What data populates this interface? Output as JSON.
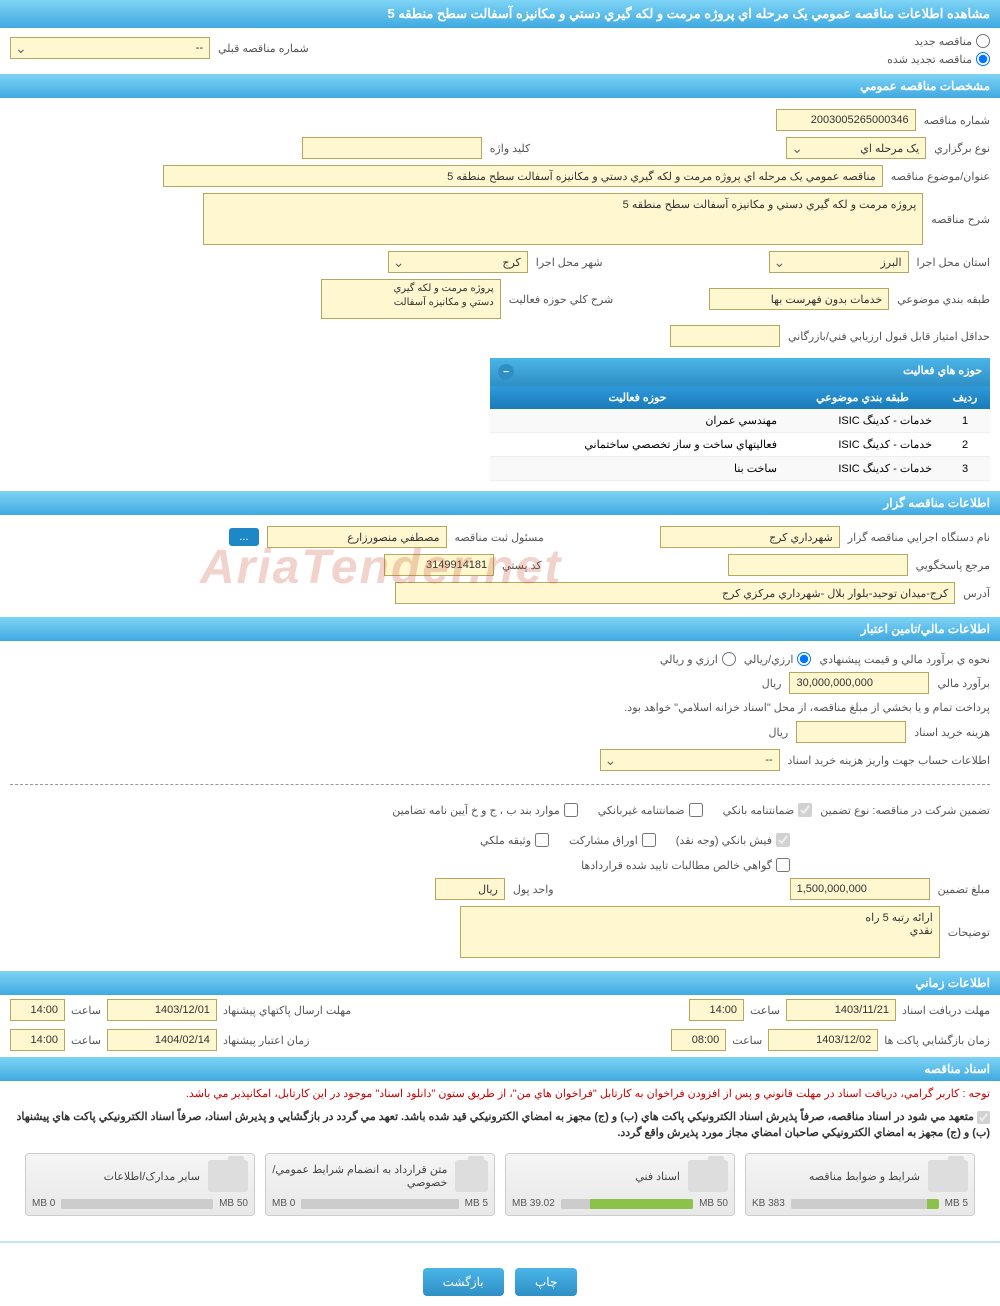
{
  "page_title": "مشاهده اطلاعات مناقصه عمومي يک مرحله اي پروژه مرمت و لکه گيري دستي و مکانيزه آسفالت سطح منطقه 5",
  "radios": {
    "new_tender": "مناقصه جديد",
    "renewed": "مناقصه تجديد شده"
  },
  "prev_tender": {
    "label": "شماره مناقصه قبلي",
    "value": "--"
  },
  "sections": {
    "general": "مشخصات مناقصه عمومي",
    "organizer": "اطلاعات مناقصه گزار",
    "financial": "اطلاعات مالي/تامين اعتبار",
    "timing": "اطلاعات زماني",
    "documents": "اسناد مناقصه"
  },
  "general": {
    "tender_no_label": "شماره مناقصه",
    "tender_no": "2003005265000346",
    "hold_type_label": "نوع برگزاري",
    "hold_type": "يک مرحله اي",
    "keyword_label": "کليد واژه",
    "keyword": "",
    "subject_label": "عنوان/موضوع مناقصه",
    "subject": "مناقصه عمومي يک مرحله اي  پروژه مرمت و لکه گيري دستي و مکانيزه آسفالت سطح منطقه 5",
    "desc_label": "شرح مناقصه",
    "desc": "پروژه مرمت و لکه گيري دستي و مکانيزه آسفالت سطح منطقه 5",
    "province_label": "استان محل اجرا",
    "province": "البرز",
    "city_label": "شهر محل اجرا",
    "city": "کرج",
    "class_label": "طبقه بندي موضوعي",
    "class": "خدمات بدون فهرست بها",
    "scope_label": "شرح کلي حوزه فعاليت",
    "scope": "پروژه مرمت و لکه گيري\nدستي و مکانيزه آسفالت",
    "min_score_label": "حداقل امتياز قابل قبول ارزيابي فني/بازرگاني",
    "min_score": ""
  },
  "activity_panel": {
    "title": "حوزه هاي فعاليت",
    "col_row": "رديف",
    "col_class": "طبقه بندي موضوعي",
    "col_scope": "حوزه فعاليت",
    "rows": [
      {
        "n": "1",
        "c": "خدمات - کدينگ ISIC",
        "s": "مهندسي عمران"
      },
      {
        "n": "2",
        "c": "خدمات - کدينگ ISIC",
        "s": "فعاليتهاي ساخت و ساز تخصصي ساختماني"
      },
      {
        "n": "3",
        "c": "خدمات - کدينگ ISIC",
        "s": "ساخت بنا"
      }
    ]
  },
  "organizer": {
    "org_label": "نام دستگاه اجرايي مناقصه گزار",
    "org": "شهرداري کرج",
    "reg_label": "مسئول ثبت مناقصه",
    "reg": "مصطفي منصورزارع",
    "resp_label": "مرجع پاسخگويي",
    "resp": "",
    "postal_label": "کد پستي",
    "postal": "3149914181",
    "address_label": "آدرس",
    "address": "کرج-ميدان توحيد-بلوار بلال -شهرداري مرکزي کرج",
    "more": "..."
  },
  "financial": {
    "method_label": "نحوه ي برآورد مالي و قيمت پيشنهادي",
    "opt_rial": "ارزي/ريالي",
    "opt_fx": "ارزي و ريالي",
    "estimate_label": "برآورد مالي",
    "estimate": "30,000,000,000",
    "unit_rial": "ريال",
    "pay_note": "پرداخت تمام و يا بخشي از مبلغ مناقصه، از محل \"اسناد خزانه اسلامي\" خواهد بود.",
    "doc_cost_label": "هزينه خريد اسناد",
    "doc_cost": "",
    "account_label": "اطلاعات حساب جهت واريز هزينه خريد اسناد",
    "account": "--",
    "guarantee_title": "تضمين شرکت در مناقصه:   نوع تضمين",
    "cb_bank": "ضمانتنامه بانکي",
    "cb_nonbank": "ضمانتنامه غيربانکي",
    "cb_bond": "موارد بند ب ، ج و خ آيين نامه تضامين",
    "cb_cash": "فيش بانکي (وجه نقد)",
    "cb_share": "اوراق مشارکت",
    "cb_prop": "وثيقه ملکي",
    "cb_claim": "گواهي خالص مطالبات تاييد شده قراردادها",
    "amount_label": "مبلغ تضمين",
    "amount": "1,500,000,000",
    "unit_label": "واحد پول",
    "grade_label": "ارائه رتبه 5 راه\nنقدي",
    "notes_label": "توضيحات"
  },
  "timing": {
    "receive_label": "مهلت دريافت اسناد",
    "receive_date": "1403/11/21",
    "receive_time": "14:00",
    "send_label": "مهلت ارسال پاکتهاي پيشنهاد",
    "send_date": "1403/12/01",
    "send_time": "14:00",
    "open_label": "زمان بازگشايي پاکت ها",
    "open_date": "1403/12/02",
    "open_time": "08:00",
    "valid_label": "زمان اعتبار پيشنهاد",
    "valid_date": "1404/02/14",
    "valid_time": "14:00",
    "time_word": "ساعت"
  },
  "docs": {
    "notice1": "توجه : کاربر گرامي، دريافت اسناد در مهلت قانوني و پس از افزودن فراخوان به کارتابل \"فراخوان هاي من\"، از طريق ستون \"دانلود اسناد\" موجود در اين کارتابل، امکانپذير مي باشد.",
    "notice2": "متعهد مي شود در اسناد مناقصه، صرفاً پذيرش اسناد الکترونيکي پاکت هاي (ب) و (ج) مجهز به امضاي الکترونيکي قيد شده باشد. تعهد مي گردد در بازگشايي و پذيرش اسناد، صرفاً اسناد الکترونيکي پاکت هاي پيشنهاد (ب) و (ج) مجهز به امضاي الکترونيکي صاحبان امضاي مجاز مورد پذيرش واقع گردد.",
    "items": [
      {
        "title": "شرايط و ضوابط مناقصه",
        "used": "383 KB",
        "total": "5 MB",
        "pct": 8
      },
      {
        "title": "اسناد فني",
        "used": "39.02 MB",
        "total": "50 MB",
        "pct": 78
      },
      {
        "title": "متن قرارداد به انضمام شرايط عمومي/خصوصي",
        "used": "0 MB",
        "total": "5 MB",
        "pct": 0
      },
      {
        "title": "ساير مدارک/اطلاعات",
        "used": "0 MB",
        "total": "50 MB",
        "pct": 0
      }
    ]
  },
  "buttons": {
    "print": "چاپ",
    "back": "بازگشت"
  },
  "watermark": "AriaTender.net",
  "colors": {
    "header_grad_top": "#7ed4f5",
    "header_grad_bottom": "#3fa9e0",
    "field_bg": "#fef7d0",
    "field_border": "#b5a85e",
    "bar_fill": "#8bc34a",
    "notice_red": "#cc0000"
  }
}
